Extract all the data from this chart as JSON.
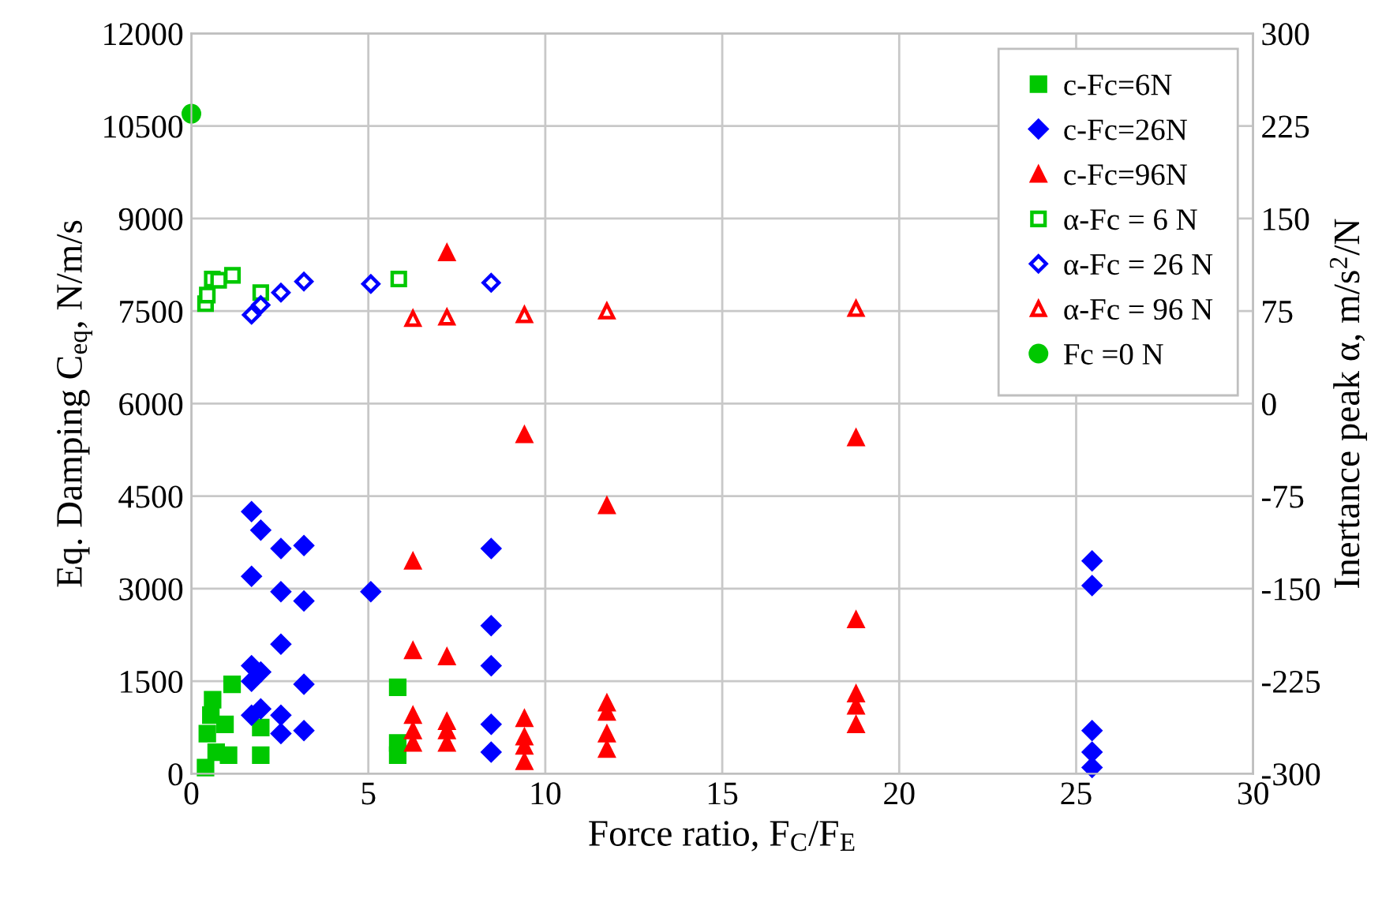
{
  "chart_data": {
    "type": "scatter",
    "xlabel": "Force ratio, F$_{C}$/F$_{E}$",
    "ylabel": "Eq. Damping C$_{eq}$, N/m/s",
    "y2label": "Inertance peak α, m/s$^{2}$/N",
    "xlim": [
      0,
      30
    ],
    "xticks": [
      0,
      5,
      10,
      15,
      20,
      25,
      30
    ],
    "ylim": [
      0,
      12000
    ],
    "yticks": [
      0,
      1500,
      3000,
      4500,
      6000,
      7500,
      9000,
      10500,
      12000
    ],
    "y2lim": [
      -300,
      300
    ],
    "y2ticks": [
      -300,
      -225,
      -150,
      -75,
      0,
      75,
      150,
      225,
      300
    ],
    "grid": true,
    "legend": "top right",
    "series": [
      {
        "name": "c-Fc=6N",
        "color": "#00c800",
        "marker": "square",
        "x": [
          0.4,
          0.45,
          0.55,
          0.6,
          0.7,
          0.95,
          1.05,
          1.15,
          1.96,
          1.96,
          5.83,
          5.83,
          5.83
        ],
        "values": [
          100,
          650,
          950,
          1200,
          350,
          800,
          300,
          1450,
          750,
          300,
          1400,
          500,
          300
        ]
      },
      {
        "name": "c-Fc=26N",
        "color": "#0000ff",
        "marker": "diamond",
        "x": [
          1.7,
          1.96,
          2.53,
          3.18,
          1.7,
          2.53,
          3.18,
          5.07,
          8.47,
          8.47,
          8.47,
          8.47,
          8.47,
          2.53,
          1.7,
          1.96,
          1.7,
          3.18,
          1.96,
          1.7,
          2.53,
          2.53,
          3.18,
          25.45,
          25.45,
          25.45,
          25.45,
          25.45
        ],
        "values": [
          4250,
          3950,
          3650,
          3700,
          3200,
          2950,
          2800,
          2950,
          3650,
          2400,
          1750,
          800,
          350,
          2100,
          1750,
          1650,
          1500,
          1450,
          1050,
          950,
          950,
          650,
          700,
          3450,
          3050,
          700,
          350,
          100
        ]
      },
      {
        "name": "c-Fc=96N",
        "color": "#ff0000",
        "marker": "triangle",
        "x": [
          7.22,
          9.41,
          11.74,
          6.26,
          6.26,
          7.22,
          6.26,
          6.26,
          6.26,
          7.22,
          7.22,
          7.22,
          9.41,
          9.41,
          9.41,
          9.41,
          11.74,
          11.74,
          11.74,
          11.74,
          18.78,
          18.78,
          18.78,
          18.78,
          18.78
        ],
        "values": [
          8450,
          5500,
          4350,
          3450,
          2000,
          1900,
          950,
          700,
          500,
          850,
          700,
          500,
          900,
          600,
          450,
          200,
          1150,
          1000,
          650,
          400,
          5450,
          2500,
          1300,
          1100,
          800
        ]
      },
      {
        "name": "α-Fc = 6 N",
        "color": "#00c800",
        "marker": "square",
        "axis": "y2",
        "x": [
          0.4,
          0.45,
          0.59,
          0.77,
          1.16,
          1.96,
          5.86
        ],
        "values": [
          81,
          88,
          101,
          100,
          104,
          90,
          101
        ]
      },
      {
        "name": "α-Fc = 26 N",
        "color": "#0000ff",
        "marker": "diamond",
        "axis": "y2",
        "x": [
          1.7,
          1.96,
          2.53,
          3.18,
          5.07,
          8.47
        ],
        "values": [
          72,
          80,
          90,
          99,
          97,
          98
        ]
      },
      {
        "name": "α-Fc = 96 N",
        "color": "#ff0000",
        "marker": "triangle",
        "axis": "y2",
        "x": [
          6.26,
          7.22,
          9.41,
          11.74,
          18.78
        ],
        "values": [
          69,
          70,
          72,
          75,
          77
        ]
      },
      {
        "name": "Fc =0 N",
        "color": "#00c800",
        "marker": "circle",
        "x": [
          0
        ],
        "values": [
          10700
        ]
      }
    ]
  }
}
